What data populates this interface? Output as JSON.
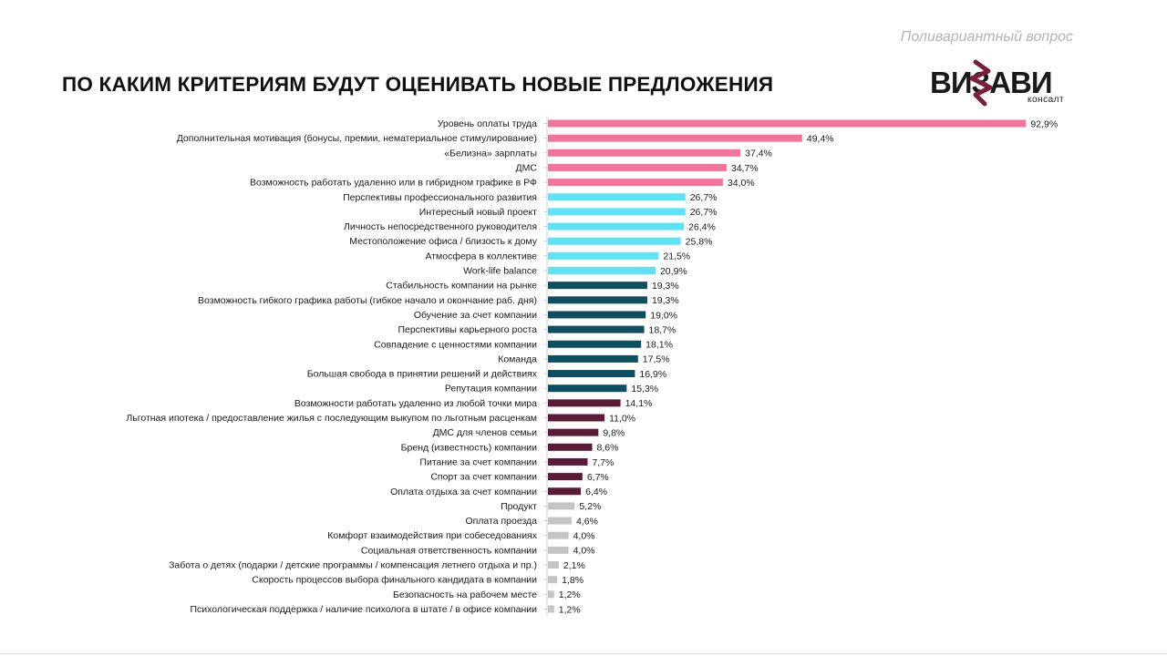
{
  "header": {
    "subtitle": "Поливариантный вопрос",
    "title": "ПО КАКИМ КРИТЕРИЯМ БУДУТ ОЦЕНИВАТЬ НОВЫЕ ПРЕДЛОЖЕНИЯ"
  },
  "logo": {
    "word": "ВИЗАВИ",
    "sub": "консалт"
  },
  "colors": {
    "pink": "#f4739a",
    "cyan": "#5de3f6",
    "teal": "#0d4e60",
    "maroon": "#5b1a37",
    "gray": "#c4c4c4",
    "logo_accent": "#7b1d3c"
  },
  "chart_data": {
    "type": "bar",
    "orientation": "horizontal",
    "value_suffix": "%",
    "xlim": [
      0,
      100
    ],
    "grid": false,
    "categories": [
      "Уровень оплаты труда",
      "Дополнительная мотивация (бонусы, премии, нематериальное стимулирование)",
      "«Белизна» зарплаты",
      "ДМС",
      "Возможность работать удаленно или в гибридном графике в РФ",
      "Перспективы профессионального развития",
      "Интересный новый проект",
      "Личность непосредственного руководителя",
      "Местоположение офиса / близость к дому",
      "Атмосфера в коллективе",
      "Work-life balance",
      "Стабильность компании на рынке",
      "Возможность гибкого графика работы (гибкое начало и окончание раб. дня)",
      "Обучение за счет компании",
      "Перспективы карьерного роста",
      "Совпадение с ценностями компании",
      "Команда",
      "Большая свобода в принятии решений и действиях",
      "Репутация компании",
      "Возможности работать удаленно из любой точки мира",
      "Льготная ипотека / предоставление жилья с последующим выкупом по льготным расценкам",
      "ДМС для членов семьи",
      "Бренд (известность) компании",
      "Питание за счет компании",
      "Спорт за счет компании",
      "Оплата отдыха за счет компании",
      "Продукт",
      "Оплата проезда",
      "Комфорт взаимодействия при собеседованиях",
      "Социальная ответственность компании",
      "Забота о детях (подарки / детские программы / компенсация летнего отдыха и пр.)",
      "Скорость процессов выбора финального кандидата в компании",
      "Безопасность на рабочем месте",
      "Психологическая поддержка / наличие психолога в штате / в офисе компании"
    ],
    "values": [
      92.9,
      49.4,
      37.4,
      34.7,
      34.0,
      26.7,
      26.7,
      26.4,
      25.8,
      21.5,
      20.9,
      19.3,
      19.3,
      19.0,
      18.7,
      18.1,
      17.5,
      16.9,
      15.3,
      14.1,
      11.0,
      9.8,
      8.6,
      7.7,
      6.7,
      6.4,
      5.2,
      4.6,
      4.0,
      4.0,
      2.1,
      1.8,
      1.2,
      1.2
    ],
    "value_labels": [
      "92,9%",
      "49,4%",
      "37,4%",
      "34,7%",
      "34,0%",
      "26,7%",
      "26,7%",
      "26,4%",
      "25,8%",
      "21,5%",
      "20,9%",
      "19,3%",
      "19,3%",
      "19,0%",
      "18,7%",
      "18,1%",
      "17,5%",
      "16,9%",
      "15,3%",
      "14,1%",
      "11,0%",
      "9,8%",
      "8,6%",
      "7,7%",
      "6,7%",
      "6,4%",
      "5,2%",
      "4,6%",
      "4,0%",
      "4,0%",
      "2,1%",
      "1,8%",
      "1,2%",
      "1,2%"
    ],
    "bar_color_groups": [
      "pink",
      "pink",
      "pink",
      "pink",
      "pink",
      "cyan",
      "cyan",
      "cyan",
      "cyan",
      "cyan",
      "cyan",
      "teal",
      "teal",
      "teal",
      "teal",
      "teal",
      "teal",
      "teal",
      "teal",
      "maroon",
      "maroon",
      "maroon",
      "maroon",
      "maroon",
      "maroon",
      "maroon",
      "gray",
      "gray",
      "gray",
      "gray",
      "gray",
      "gray",
      "gray",
      "gray"
    ]
  }
}
